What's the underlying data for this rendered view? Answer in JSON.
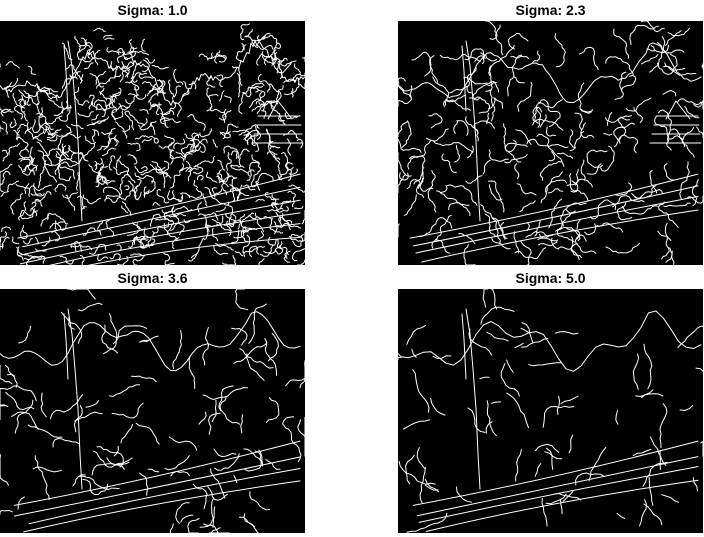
{
  "panels": [
    {
      "title": "Sigma: 1.0",
      "sigma": 1.0
    },
    {
      "title": "Sigma: 2.3",
      "sigma": 2.3
    },
    {
      "title": "Sigma: 3.6",
      "sigma": 3.6
    },
    {
      "title": "Sigma: 5.0",
      "sigma": 5.0
    }
  ],
  "colors": {
    "background": "#000000",
    "edges": "#ffffff",
    "page": "#ffffff"
  }
}
